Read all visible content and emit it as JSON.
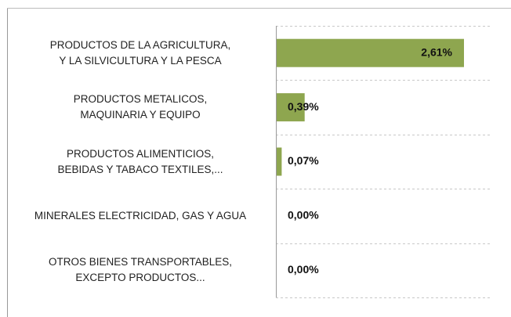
{
  "chart_data": {
    "type": "bar",
    "orientation": "horizontal",
    "categories": [
      "PRODUCTOS DE LA AGRICULTURA, Y LA SILVICULTURA Y LA PESCA",
      "PRODUCTOS METALICOS, MAQUINARIA Y EQUIPO",
      "PRODUCTOS ALIMENTICIOS, BEBIDAS Y TABACO TEXTILES,...",
      "MINERALES ELECTRICIDAD, GAS Y AGUA",
      "OTROS BIENES TRANSPORTABLES, EXCEPTO PRODUCTOS..."
    ],
    "values": [
      2.61,
      0.39,
      0.07,
      0,
      0
    ],
    "value_labels": [
      "2,61%",
      "0,39%",
      "0,07%",
      "0,00%",
      "0,00%"
    ],
    "color": "#8ea64f",
    "grid": true
  }
}
